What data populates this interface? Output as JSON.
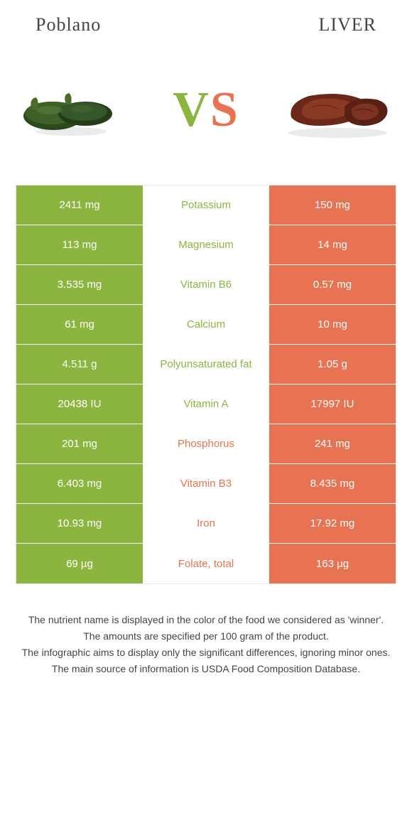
{
  "header": {
    "left": "Poblano",
    "right": "LIVER"
  },
  "colors": {
    "left": "#8cb53f",
    "right": "#e87352",
    "leftDark": "#6d9630",
    "rightDark": "#7a3220",
    "vsLeft": "#8cb53f",
    "vsRight": "#e87352"
  },
  "rows": [
    {
      "left": "2411 mg",
      "mid": "Potassium",
      "right": "150 mg",
      "winner": "left"
    },
    {
      "left": "113 mg",
      "mid": "Magnesium",
      "right": "14 mg",
      "winner": "left"
    },
    {
      "left": "3.535 mg",
      "mid": "Vitamin B6",
      "right": "0.57 mg",
      "winner": "left"
    },
    {
      "left": "61 mg",
      "mid": "Calcium",
      "right": "10 mg",
      "winner": "left"
    },
    {
      "left": "4.511 g",
      "mid": "Polyunsaturated fat",
      "right": "1.05 g",
      "winner": "left"
    },
    {
      "left": "20438 IU",
      "mid": "Vitamin A",
      "right": "17997 IU",
      "winner": "left"
    },
    {
      "left": "201 mg",
      "mid": "Phosphorus",
      "right": "241 mg",
      "winner": "right"
    },
    {
      "left": "6.403 mg",
      "mid": "Vitamin B3",
      "right": "8.435 mg",
      "winner": "right"
    },
    {
      "left": "10.93 mg",
      "mid": "Iron",
      "right": "17.92 mg",
      "winner": "right"
    },
    {
      "left": "69 µg",
      "mid": "Folate, total",
      "right": "163 µg",
      "winner": "right"
    }
  ],
  "footer": [
    "The nutrient name is displayed in the color of the food we considered as 'winner'.",
    "The amounts are specified per 100 gram of the product.",
    "The infographic aims to display only the significant differences, ignoring minor ones.",
    "The main source of information is USDA Food Composition Database."
  ]
}
